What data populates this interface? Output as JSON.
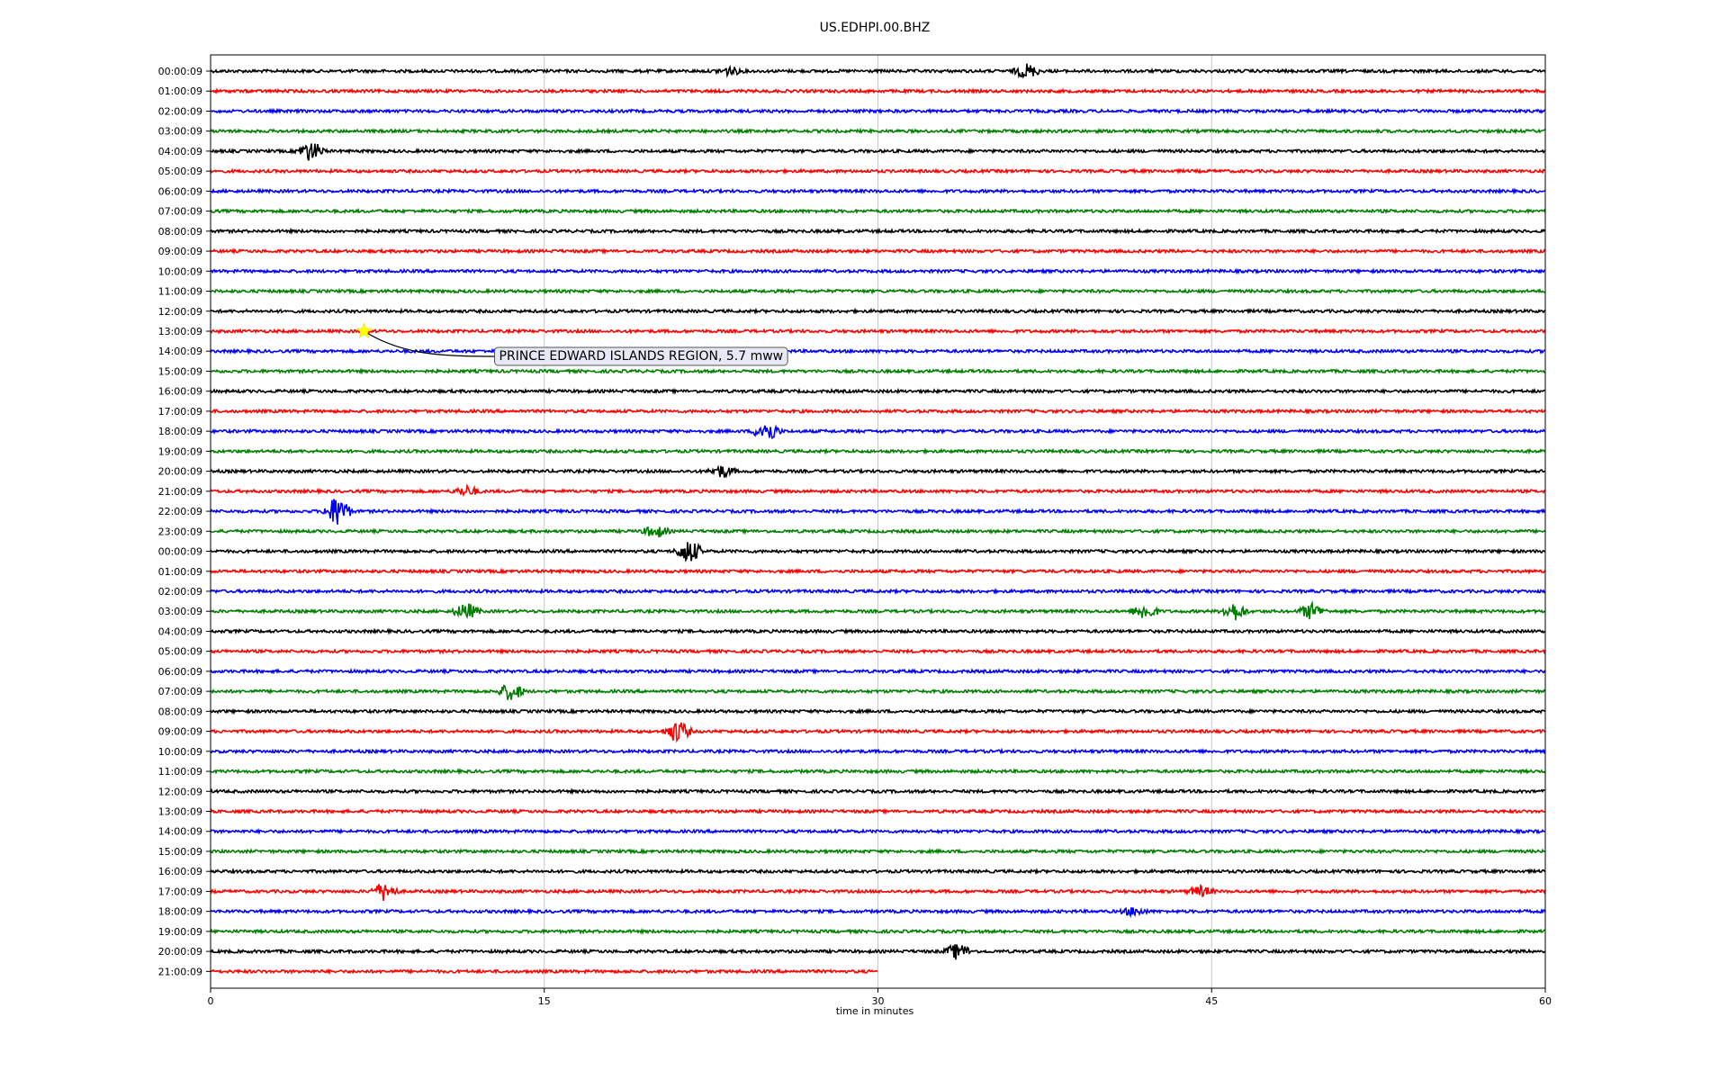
{
  "chart_data": {
    "type": "line",
    "title": "US.EDHPI.00.BHZ",
    "xlabel": "time in minutes",
    "xlim": [
      0,
      60
    ],
    "x_ticks": [
      0,
      15,
      30,
      45,
      60
    ],
    "grid": "vertical",
    "row_labels": [
      "00:00:09",
      "01:00:09",
      "02:00:09",
      "03:00:09",
      "04:00:09",
      "05:00:09",
      "06:00:09",
      "07:00:09",
      "08:00:09",
      "09:00:09",
      "10:00:09",
      "11:00:09",
      "12:00:09",
      "13:00:09",
      "14:00:09",
      "15:00:09",
      "16:00:09",
      "17:00:09",
      "18:00:09",
      "19:00:09",
      "20:00:09",
      "21:00:09",
      "22:00:09",
      "23:00:09",
      "00:00:09",
      "01:00:09",
      "02:00:09",
      "03:00:09",
      "04:00:09",
      "05:00:09",
      "06:00:09",
      "07:00:09",
      "08:00:09",
      "09:00:09",
      "10:00:09",
      "11:00:09",
      "12:00:09",
      "13:00:09",
      "14:00:09",
      "15:00:09",
      "16:00:09",
      "17:00:09",
      "18:00:09",
      "19:00:09",
      "20:00:09",
      "21:00:09"
    ],
    "row_colors": [
      "#000000",
      "#ff0000",
      "#0000ff",
      "#008000"
    ],
    "last_row_end_minute": 30,
    "events": [
      {
        "row": 0,
        "minute": 36.7,
        "amp": 0.35
      },
      {
        "row": 0,
        "minute": 23.3,
        "amp": 0.2
      },
      {
        "row": 4,
        "minute": 4.5,
        "amp": 0.5
      },
      {
        "row": 18,
        "minute": 25.0,
        "amp": 0.55
      },
      {
        "row": 20,
        "minute": 23.0,
        "amp": 0.3
      },
      {
        "row": 21,
        "minute": 11.5,
        "amp": 0.25
      },
      {
        "row": 22,
        "minute": 5.7,
        "amp": 0.8
      },
      {
        "row": 23,
        "minute": 20.0,
        "amp": 0.3
      },
      {
        "row": 24,
        "minute": 21.5,
        "amp": 0.6
      },
      {
        "row": 27,
        "minute": 11.5,
        "amp": 0.4
      },
      {
        "row": 27,
        "minute": 42.0,
        "amp": 0.4
      },
      {
        "row": 27,
        "minute": 46.0,
        "amp": 0.45
      },
      {
        "row": 27,
        "minute": 49.5,
        "amp": 0.4
      },
      {
        "row": 31,
        "minute": 13.5,
        "amp": 0.45
      },
      {
        "row": 33,
        "minute": 21.0,
        "amp": 0.55
      },
      {
        "row": 41,
        "minute": 7.8,
        "amp": 0.45
      },
      {
        "row": 41,
        "minute": 44.5,
        "amp": 0.25
      },
      {
        "row": 42,
        "minute": 41.5,
        "amp": 0.2
      },
      {
        "row": 44,
        "minute": 33.6,
        "amp": 0.4
      }
    ],
    "annotation": {
      "text": "PRINCE EDWARD ISLANDS REGION, 5.7 mww",
      "row": 13,
      "minute": 6.9,
      "marker": "star",
      "marker_color": "#ffff00"
    }
  }
}
